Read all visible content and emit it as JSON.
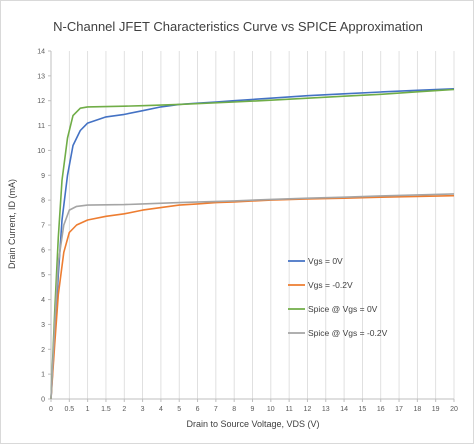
{
  "chart_data": {
    "type": "line",
    "title": "N-Channel JFET Characteristics Curve vs SPICE Approximation",
    "xlabel": "Drain to Source Voltage, VDS (V)",
    "ylabel": "Drain Current, ID (mA)",
    "xlim": [
      0,
      20
    ],
    "ylim": [
      0,
      14
    ],
    "x_ticks": [
      "0",
      "0.5",
      "1",
      "1.5",
      "2",
      "3",
      "4",
      "5",
      "6",
      "7",
      "8",
      "9",
      "10",
      "11",
      "12",
      "13",
      "14",
      "15",
      "16",
      "17",
      "18",
      "19",
      "20"
    ],
    "y_ticks": [
      "0",
      "1",
      "2",
      "3",
      "4",
      "5",
      "6",
      "7",
      "8",
      "9",
      "10",
      "11",
      "12",
      "13",
      "14"
    ],
    "grid": {
      "x": true,
      "y": false
    },
    "legend_position": "right",
    "series": [
      {
        "name": "Vgs = 0V",
        "color": "#4472c4",
        "points": [
          [
            0,
            0
          ],
          [
            0.1,
            2.5
          ],
          [
            0.2,
            5
          ],
          [
            0.3,
            7.2
          ],
          [
            0.45,
            9
          ],
          [
            0.6,
            10.2
          ],
          [
            0.8,
            10.8
          ],
          [
            1,
            11.1
          ],
          [
            1.5,
            11.35
          ],
          [
            2,
            11.45
          ],
          [
            3,
            11.6
          ],
          [
            4,
            11.75
          ],
          [
            5,
            11.85
          ],
          [
            6,
            11.9
          ],
          [
            7,
            11.95
          ],
          [
            8,
            12.0
          ],
          [
            10,
            12.1
          ],
          [
            12,
            12.2
          ],
          [
            14,
            12.28
          ],
          [
            16,
            12.35
          ],
          [
            18,
            12.42
          ],
          [
            20,
            12.48
          ]
        ]
      },
      {
        "name": "Vgs = -0.2V",
        "color": "#ed7d31",
        "points": [
          [
            0,
            0
          ],
          [
            0.1,
            2.2
          ],
          [
            0.2,
            4.2
          ],
          [
            0.35,
            5.9
          ],
          [
            0.5,
            6.7
          ],
          [
            0.7,
            7.0
          ],
          [
            1,
            7.2
          ],
          [
            1.5,
            7.35
          ],
          [
            2,
            7.45
          ],
          [
            3,
            7.6
          ],
          [
            4,
            7.7
          ],
          [
            5,
            7.8
          ],
          [
            6,
            7.85
          ],
          [
            7,
            7.9
          ],
          [
            8,
            7.93
          ],
          [
            10,
            8.0
          ],
          [
            12,
            8.05
          ],
          [
            14,
            8.08
          ],
          [
            16,
            8.12
          ],
          [
            18,
            8.15
          ],
          [
            20,
            8.18
          ]
        ]
      },
      {
        "name": "Spice @ Vgs = 0V",
        "color": "#70ad47",
        "points": [
          [
            0,
            0
          ],
          [
            0.1,
            3.5
          ],
          [
            0.2,
            6.5
          ],
          [
            0.3,
            8.8
          ],
          [
            0.45,
            10.5
          ],
          [
            0.6,
            11.4
          ],
          [
            0.8,
            11.7
          ],
          [
            1,
            11.75
          ],
          [
            2,
            11.78
          ],
          [
            3,
            11.8
          ],
          [
            5,
            11.85
          ],
          [
            8,
            11.95
          ],
          [
            10,
            12.02
          ],
          [
            12,
            12.1
          ],
          [
            14,
            12.18
          ],
          [
            16,
            12.26
          ],
          [
            18,
            12.36
          ],
          [
            20,
            12.45
          ]
        ]
      },
      {
        "name": "Spice @ Vgs = -0.2V",
        "color": "#a5a5a5",
        "points": [
          [
            0,
            0
          ],
          [
            0.1,
            3
          ],
          [
            0.2,
            5.5
          ],
          [
            0.35,
            7.0
          ],
          [
            0.5,
            7.6
          ],
          [
            0.7,
            7.75
          ],
          [
            1,
            7.8
          ],
          [
            2,
            7.82
          ],
          [
            3,
            7.85
          ],
          [
            5,
            7.9
          ],
          [
            8,
            7.97
          ],
          [
            10,
            8.03
          ],
          [
            12,
            8.08
          ],
          [
            14,
            8.12
          ],
          [
            16,
            8.17
          ],
          [
            18,
            8.21
          ],
          [
            20,
            8.25
          ]
        ]
      }
    ]
  }
}
